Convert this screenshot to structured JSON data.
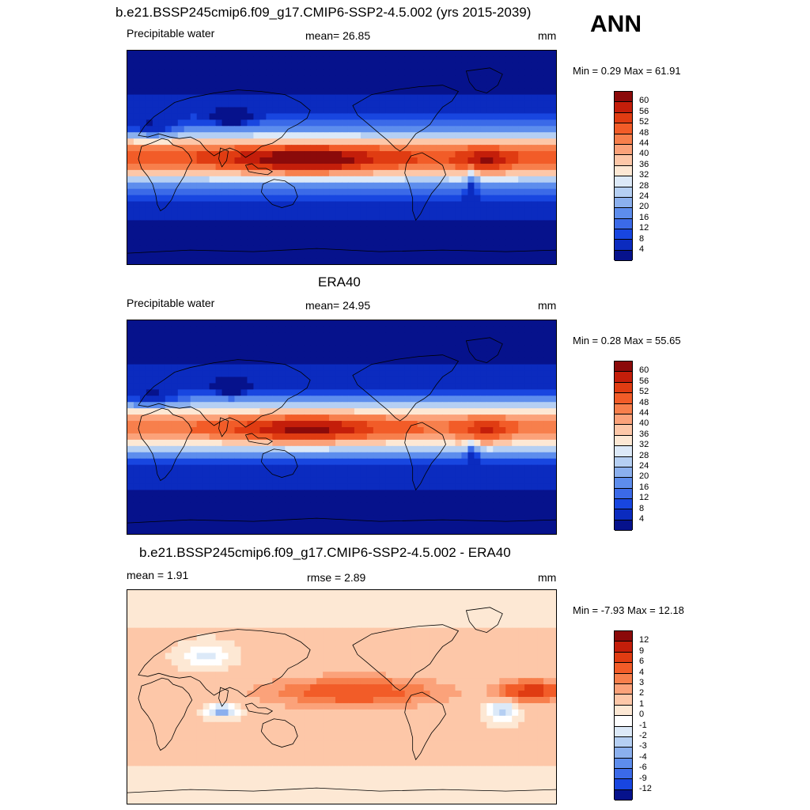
{
  "season": "ANN",
  "panels": [
    {
      "title": "b.e21.BSSP245cmip6.f09_g17.CMIP6-SSP2-4.5.002 (yrs 2015-2039)",
      "left_label": "Precipitable water",
      "center_label": "mean=  26.85",
      "units": "mm",
      "minmax": "Min =   0.29 Max =  61.91",
      "levels": [
        "60",
        "56",
        "52",
        "48",
        "44",
        "40",
        "36",
        "32",
        "28",
        "24",
        "20",
        "16",
        "12",
        "8",
        "4"
      ],
      "colors": [
        "#8b0a0a",
        "#c41e0a",
        "#e03c12",
        "#f25c28",
        "#f77f4c",
        "#fba27a",
        "#fdc7a8",
        "#fde8d4",
        "#dce9f8",
        "#b5cff3",
        "#8bb0ee",
        "#5d8ded",
        "#3b6ae8",
        "#1846e0",
        "#0b2bbf",
        "#06128c"
      ],
      "map_type": "model"
    },
    {
      "title": "ERA40",
      "left_label": "Precipitable water",
      "center_label": "mean=  24.95",
      "units": "mm",
      "minmax": "Min =   0.28 Max =  55.65",
      "levels": [
        "60",
        "56",
        "52",
        "48",
        "44",
        "40",
        "36",
        "32",
        "28",
        "24",
        "20",
        "16",
        "12",
        "8",
        "4"
      ],
      "colors": [
        "#8b0a0a",
        "#c41e0a",
        "#e03c12",
        "#f25c28",
        "#f77f4c",
        "#fba27a",
        "#fdc7a8",
        "#fde8d4",
        "#dce9f8",
        "#b5cff3",
        "#8bb0ee",
        "#5d8ded",
        "#3b6ae8",
        "#1846e0",
        "#0b2bbf",
        "#06128c"
      ],
      "map_type": "obs"
    },
    {
      "title": "b.e21.BSSP245cmip6.f09_g17.CMIP6-SSP2-4.5.002 - ERA40",
      "left_label": "mean =   1.91",
      "center_label": "rmse =   2.89",
      "units": "mm",
      "minmax": "Min =  -7.93 Max =  12.18",
      "levels": [
        "12",
        "9",
        "6",
        "4",
        "3",
        "2",
        "1",
        "0",
        "-1",
        "-2",
        "-3",
        "-4",
        "-6",
        "-9",
        "-12"
      ],
      "colors": [
        "#8b0a0a",
        "#c41e0a",
        "#e03c12",
        "#f25c28",
        "#f77f4c",
        "#fba27a",
        "#fdc7a8",
        "#fde8d4",
        "#ffffff",
        "#dce9f8",
        "#b5cff3",
        "#8bb0ee",
        "#5d8ded",
        "#3b6ae8",
        "#1846e0",
        "#06128c"
      ],
      "map_type": "diff"
    }
  ]
}
